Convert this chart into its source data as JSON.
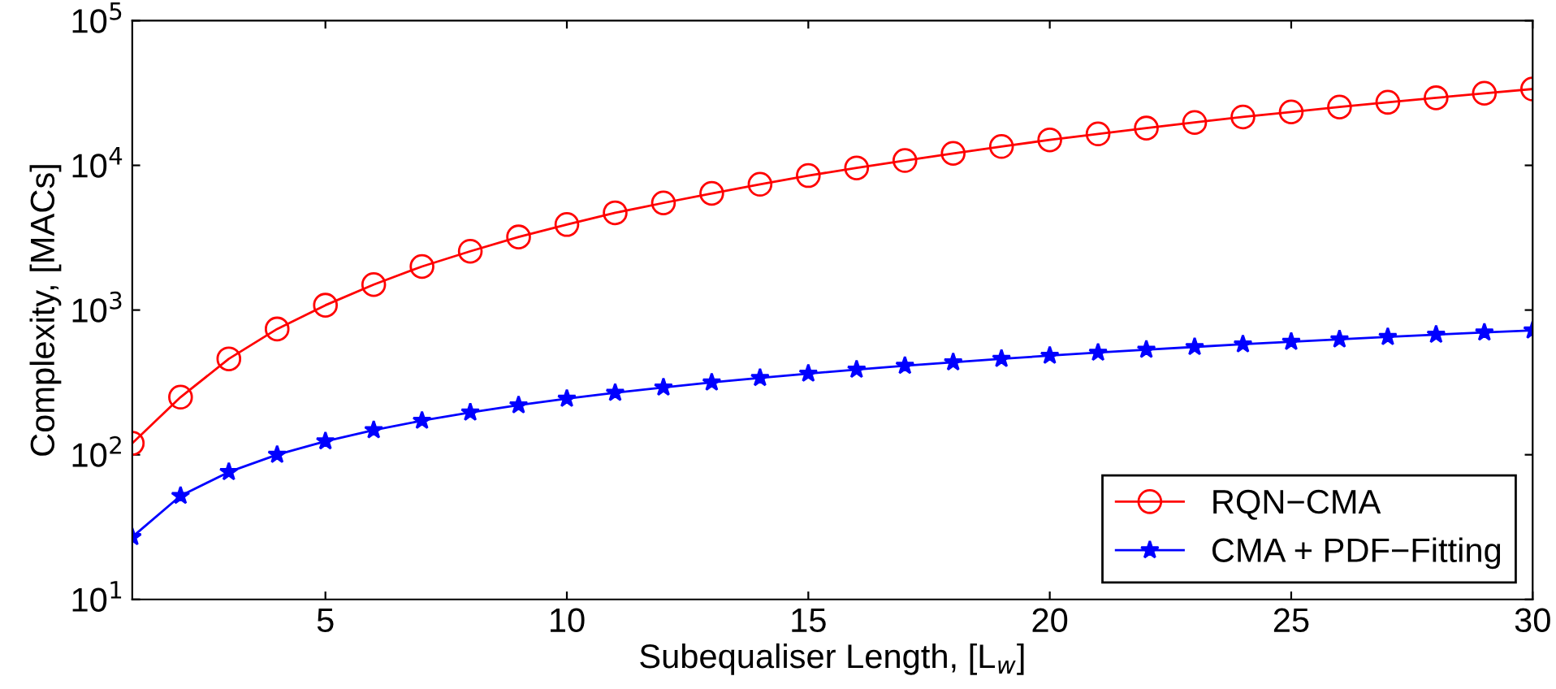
{
  "chart_data": {
    "type": "line",
    "xlabel": "Subequaliser Length, [L$_{w}$]",
    "ylabel": "Complexity, [MACs]",
    "log": "y",
    "x": [
      1,
      2,
      3,
      4,
      5,
      6,
      7,
      8,
      9,
      10,
      11,
      12,
      13,
      14,
      15,
      16,
      17,
      18,
      19,
      20,
      21,
      22,
      23,
      24,
      25,
      26,
      27,
      28,
      29,
      30
    ],
    "series": [
      {
        "name": "RQN−CMA",
        "color": "#ff0000",
        "marker": "circle",
        "values": [
          120,
          250,
          460,
          740,
          1080,
          1500,
          2000,
          2550,
          3200,
          3900,
          4700,
          5500,
          6400,
          7400,
          8500,
          9600,
          10800,
          12100,
          13500,
          15000,
          16500,
          18100,
          19800,
          21600,
          23400,
          25300,
          27300,
          29300,
          31500,
          33700
        ]
      },
      {
        "name": "CMA + PDF−Fitting",
        "color": "#0000ff",
        "marker": "star",
        "values": [
          27,
          52,
          76,
          100,
          124,
          148,
          172,
          196,
          220,
          244,
          268,
          292,
          316,
          340,
          364,
          388,
          412,
          436,
          460,
          484,
          508,
          532,
          556,
          580,
          604,
          628,
          652,
          676,
          700,
          724
        ]
      }
    ],
    "xlim": [
      1,
      30
    ],
    "xticks": [
      5,
      10,
      15,
      20,
      25,
      30
    ],
    "ylim": [
      10,
      100000
    ],
    "yticks": [
      {
        "value": 10,
        "label": "10$^{1}$"
      },
      {
        "value": 100,
        "label": "10$^{2}$"
      },
      {
        "value": 1000,
        "label": "10$^{3}$"
      },
      {
        "value": 10000,
        "label": "10$^{4}$"
      },
      {
        "value": 100000,
        "label": "10$^{5}$"
      }
    ],
    "legend": "bottom right",
    "grid": false,
    "line_style": "solid"
  }
}
